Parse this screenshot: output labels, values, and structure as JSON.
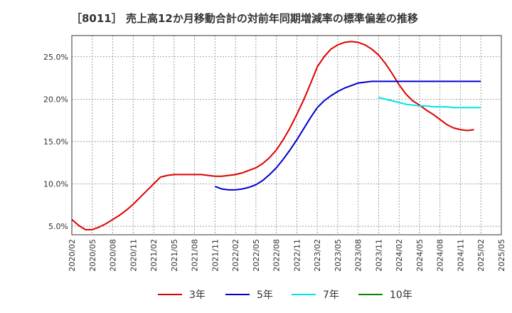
{
  "chart_data": {
    "type": "line",
    "title": "［8011］ 売上高12か月移動合計の対前年同期増減率の標準偏差の推移",
    "xlabel": "",
    "ylabel": "",
    "ylim": [
      4.0,
      27.5
    ],
    "y_ticks": [
      "5.0%",
      "10.0%",
      "15.0%",
      "20.0%",
      "25.0%"
    ],
    "y_tick_values": [
      5,
      10,
      15,
      20,
      25
    ],
    "x_ticks": [
      "2020/02",
      "2020/05",
      "2020/08",
      "2020/11",
      "2021/02",
      "2021/05",
      "2021/08",
      "2021/11",
      "2022/02",
      "2022/05",
      "2022/08",
      "2022/11",
      "2023/02",
      "2023/05",
      "2023/08",
      "2023/11",
      "2024/02",
      "2024/05",
      "2024/08",
      "2024/11",
      "2025/02",
      "2025/05"
    ],
    "grid": true,
    "legend_position": "bottom",
    "series": [
      {
        "name": "3年",
        "color": "#dd0000",
        "start": "2020/02",
        "values": [
          5.8,
          5.1,
          4.6,
          4.6,
          4.9,
          5.3,
          5.8,
          6.3,
          6.9,
          7.6,
          8.4,
          9.2,
          10.0,
          10.8,
          11.0,
          11.1,
          11.1,
          11.1,
          11.1,
          11.1,
          11.0,
          10.9,
          10.9,
          11.0,
          11.1,
          11.3,
          11.6,
          11.9,
          12.4,
          13.1,
          14.0,
          15.2,
          16.6,
          18.2,
          19.9,
          21.8,
          23.8,
          25.0,
          25.9,
          26.4,
          26.7,
          26.8,
          26.7,
          26.4,
          25.9,
          25.2,
          24.2,
          23.0,
          21.7,
          20.6,
          19.8,
          19.3,
          18.7,
          18.2,
          17.6,
          17.0,
          16.6,
          16.4,
          16.3,
          16.4
        ]
      },
      {
        "name": "5年",
        "color": "#0000cc",
        "start": "2021/11",
        "values": [
          9.7,
          9.4,
          9.3,
          9.3,
          9.4,
          9.6,
          9.9,
          10.4,
          11.1,
          11.9,
          12.9,
          14.0,
          15.2,
          16.5,
          17.8,
          19.0,
          19.8,
          20.4,
          20.9,
          21.3,
          21.6,
          21.9,
          22.0,
          22.1,
          22.1,
          22.1,
          22.1,
          22.1,
          22.1,
          22.1,
          22.1,
          22.1,
          22.1,
          22.1,
          22.1,
          22.1,
          22.1,
          22.1,
          22.1,
          22.1
        ]
      },
      {
        "name": "7年",
        "color": "#00e5e5",
        "start": "2023/11",
        "values": [
          20.2,
          20.0,
          19.8,
          19.6,
          19.4,
          19.3,
          19.2,
          19.2,
          19.1,
          19.1,
          19.1,
          19.0,
          19.0,
          19.0,
          19.0,
          19.0
        ]
      },
      {
        "name": "10年",
        "color": "#008800",
        "start": "2025/02",
        "values": []
      }
    ]
  }
}
